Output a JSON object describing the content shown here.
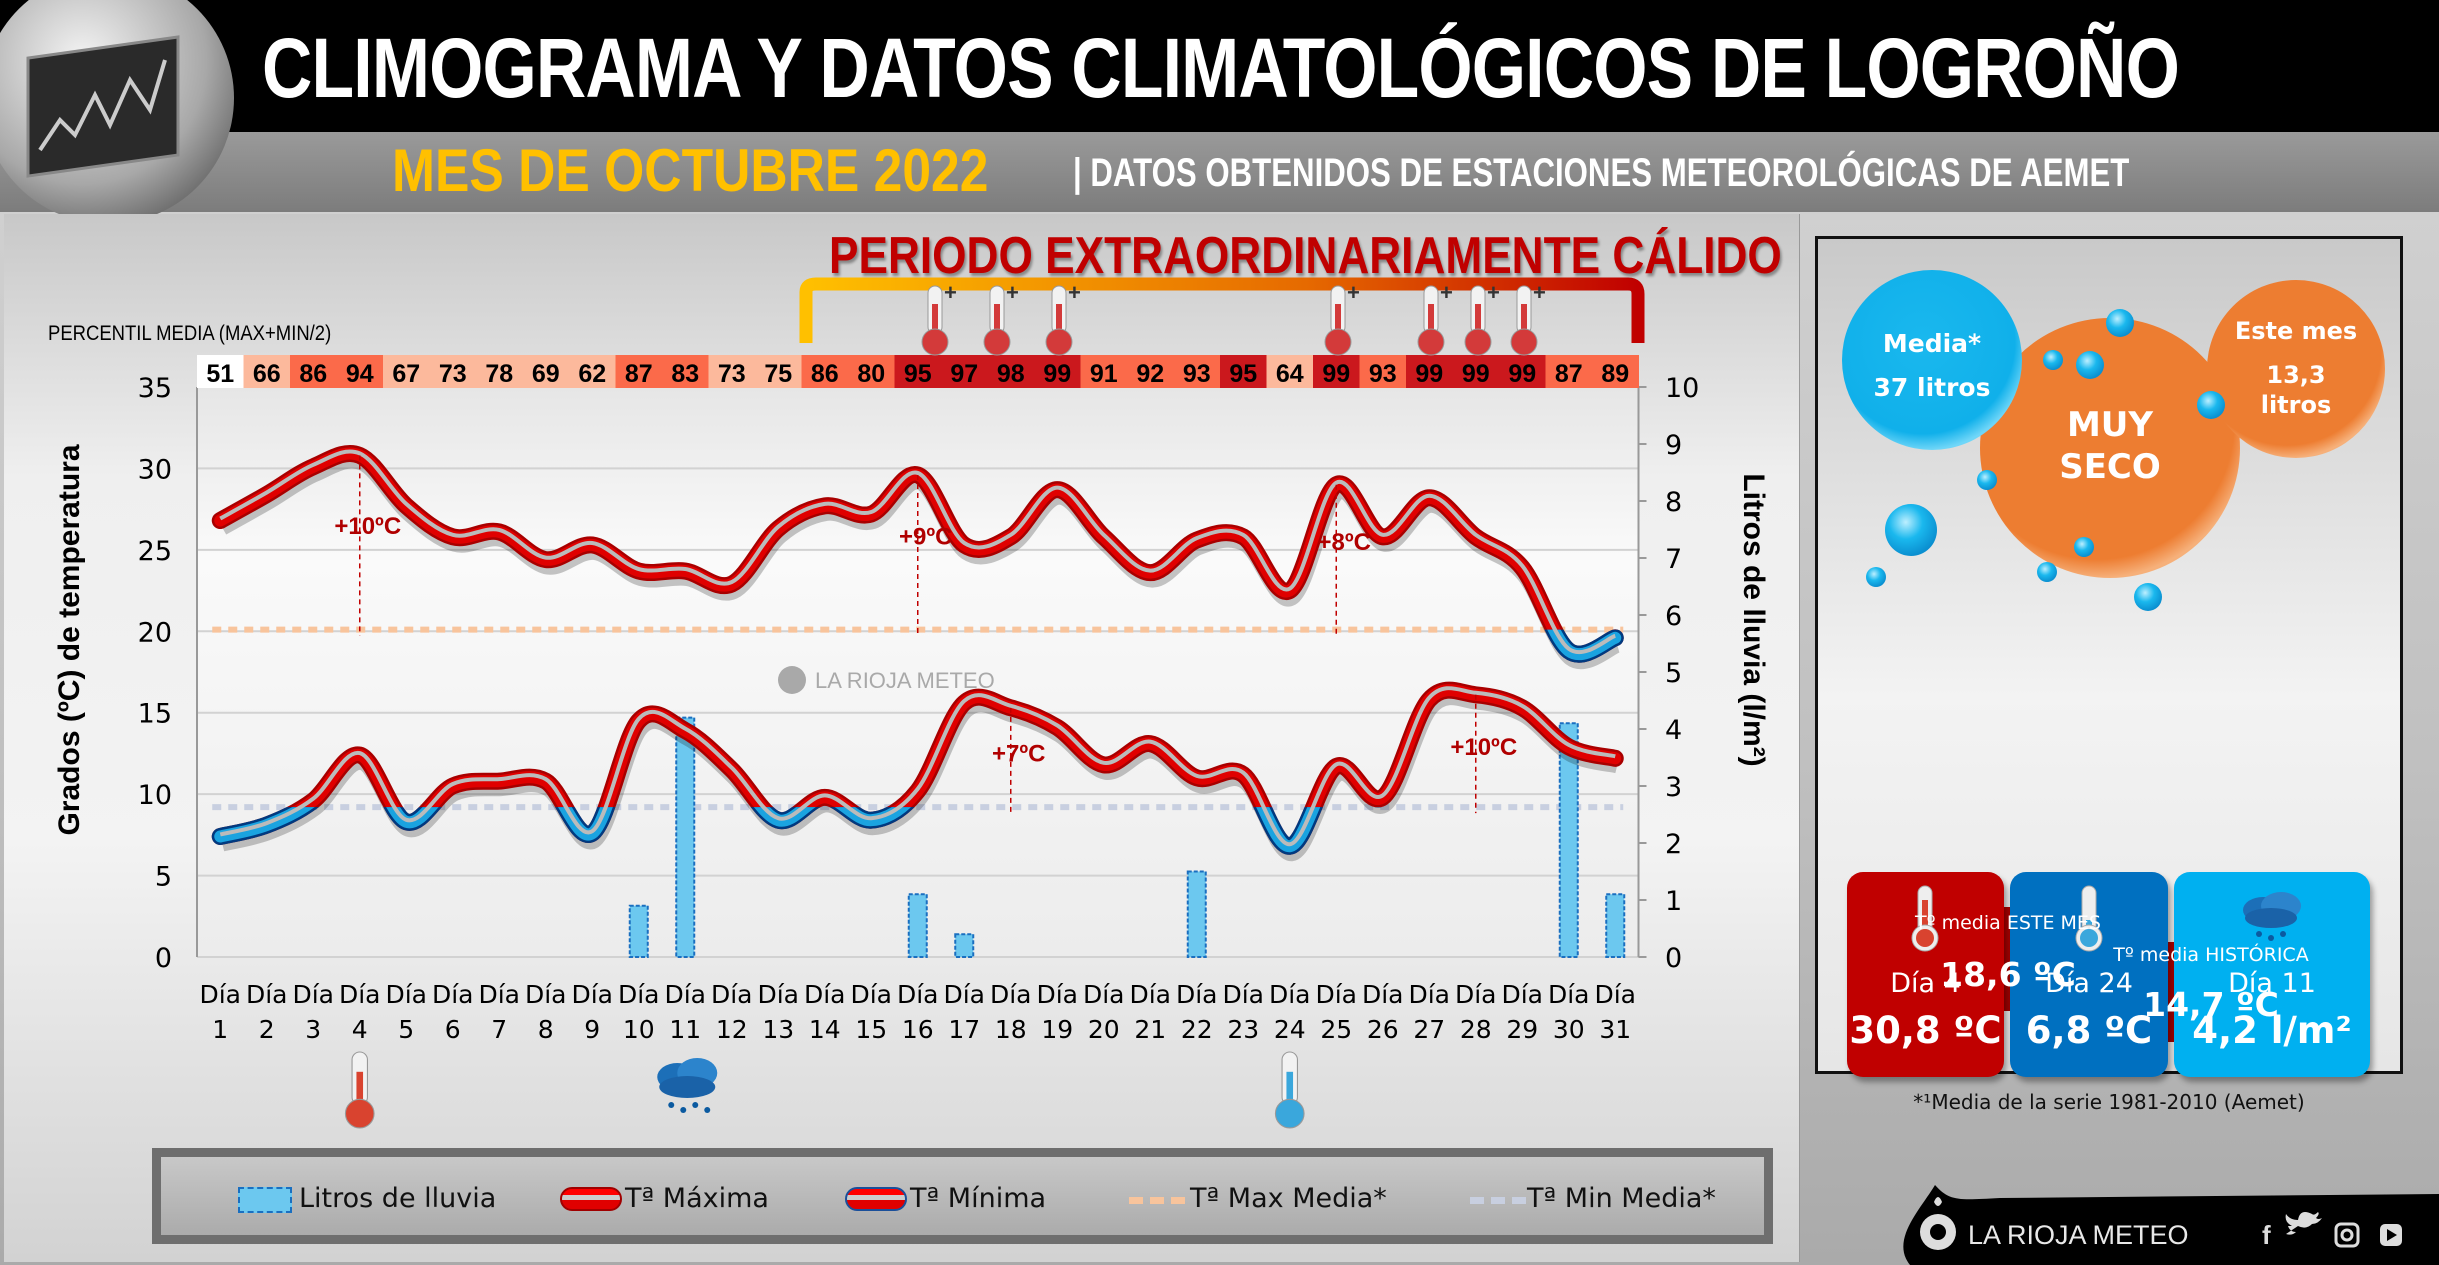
{
  "header": {
    "title": "CLIMOGRAMA Y DATOS CLIMATOLÓGICOS DE LOGROÑO",
    "month": "MES DE OCTUBRE 2022",
    "source": "| DATOS OBTENIDOS DE ESTACIONES METEOROLÓGICAS DE AEMET"
  },
  "period_label": "PERIODO EXTRAORDINARIAMENTE CÁLIDO",
  "percentile": {
    "label": "PERCENTIL MEDIA (MAX+MIN/2)",
    "values": [
      51,
      66,
      86,
      94,
      67,
      73,
      78,
      69,
      62,
      87,
      83,
      73,
      75,
      86,
      80,
      95,
      97,
      98,
      99,
      91,
      92,
      93,
      95,
      64,
      99,
      93,
      99,
      99,
      99,
      87,
      89
    ],
    "colors": {
      "base": "#ffffff",
      "low": "#fcb99c",
      "mid": "#fb6a4a",
      "high": "#cb181d"
    }
  },
  "chart_data": {
    "type": "bar+line",
    "x_prefix": "Día",
    "categories": [
      "1",
      "2",
      "3",
      "4",
      "5",
      "6",
      "7",
      "8",
      "9",
      "10",
      "11",
      "12",
      "13",
      "14",
      "15",
      "16",
      "17",
      "18",
      "19",
      "20",
      "21",
      "22",
      "23",
      "24",
      "25",
      "26",
      "27",
      "28",
      "29",
      "30",
      "31"
    ],
    "ylabel": "Grados (ºC) de temperatura",
    "ylabel_right": "Litros de lluvia  (l/m²)",
    "ylim": [
      0,
      35
    ],
    "ylim_right": [
      0,
      10
    ],
    "y_ticks": [
      "0",
      "5",
      "10",
      "15",
      "20",
      "25",
      "30",
      "35"
    ],
    "y_ticks_right": [
      "0",
      "1",
      "2",
      "3",
      "4",
      "5",
      "6",
      "7",
      "8",
      "9",
      "10"
    ],
    "grid": true,
    "legend_position": "bottom",
    "series": [
      {
        "name": "Litros de lluvia",
        "type": "bar",
        "axis": "right",
        "color": "#6cc8ef",
        "values": [
          0,
          0,
          0,
          0,
          0,
          0,
          0,
          0,
          0,
          0.9,
          4.2,
          0,
          0,
          0,
          0,
          1.1,
          0.4,
          0,
          0,
          0,
          0,
          1.5,
          0,
          0,
          0,
          0,
          0,
          0,
          0,
          4.1,
          1.1
        ]
      },
      {
        "name": "Tª Máxima",
        "type": "line",
        "color": "#e00000",
        "below_color": "#1aa3e0",
        "values": [
          26.8,
          28.4,
          30.1,
          30.8,
          27.7,
          25.8,
          26.1,
          24.4,
          25.3,
          23.7,
          23.7,
          22.9,
          26.3,
          27.7,
          27.2,
          29.6,
          25.3,
          25.8,
          28.7,
          25.8,
          23.6,
          25.6,
          25.8,
          22.5,
          29.0,
          25.8,
          28.2,
          25.8,
          23.9,
          18.8,
          19.6
        ]
      },
      {
        "name": "Tª Mínima",
        "type": "line",
        "color": "#e00000",
        "below_color": "#1aa3e0",
        "values": [
          7.4,
          8.1,
          9.6,
          12.4,
          8.3,
          10.5,
          10.8,
          10.8,
          7.6,
          14.5,
          13.9,
          11.5,
          8.4,
          9.8,
          8.4,
          10.2,
          15.6,
          15.3,
          14.1,
          11.8,
          13.1,
          11.0,
          11.2,
          6.8,
          11.7,
          9.8,
          15.8,
          16.1,
          15.3,
          12.9,
          12.2
        ]
      },
      {
        "name": "Tª Max Media*",
        "type": "reference",
        "color": "#f8c49c",
        "value": 20.1
      },
      {
        "name": "Tª Min Media*",
        "type": "reference",
        "color": "#c8cfe0",
        "value": 9.2
      }
    ],
    "annotations": [
      {
        "day": 4,
        "series": "Tª Máxima",
        "text": "+10ºC"
      },
      {
        "day": 16,
        "series": "Tª Máxima",
        "text": "+9ºC"
      },
      {
        "day": 25,
        "series": "Tª Máxima",
        "text": "+8ºC"
      },
      {
        "day": 18,
        "series": "Tª Mínima",
        "text": "+7ºC"
      },
      {
        "day": 28,
        "series": "Tª Mínima",
        "text": "+10ºC"
      }
    ],
    "extreme_icons": [
      {
        "day": 4,
        "icon": "hot-thermometer-icon"
      },
      {
        "day": 11,
        "icon": "rain-cloud-icon"
      },
      {
        "day": 24,
        "icon": "cold-thermometer-icon"
      }
    ]
  },
  "watermark": "LA RIOJA METEO",
  "summary": {
    "avg_rain_title": "Media*",
    "avg_rain_value": "37 litros",
    "verdict_line1": "MUY",
    "verdict_line2": "SECO",
    "month_rain_title": "Este mes",
    "month_rain_value": "13,3",
    "month_rain_unit": "litros",
    "tiles": [
      {
        "day": "Día 4",
        "value": "30,8 ºC",
        "color": "#c00000",
        "icon": "hot-thermometer-icon"
      },
      {
        "day": "Día 24",
        "value": "6,8 ºC",
        "color": "#0070c0",
        "icon": "cold-thermometer-icon"
      },
      {
        "day": "Día 11",
        "value": "4,2 l/m²",
        "color": "#00b0f0",
        "icon": "rain-cloud-icon"
      }
    ],
    "month_mean_label": "Tº media ESTE MES",
    "month_mean_value": "18,6 ºC",
    "hist_mean_label": "Tº media  HISTÓRICA",
    "hist_mean_value": "14,7 ºC",
    "footnote": "*¹Media de la serie 1981-2010 (Aemet)"
  },
  "footer": {
    "brand": "LA RIOJA METEO",
    "social": [
      "facebook-icon",
      "twitter-icon",
      "instagram-icon",
      "youtube-icon"
    ]
  }
}
